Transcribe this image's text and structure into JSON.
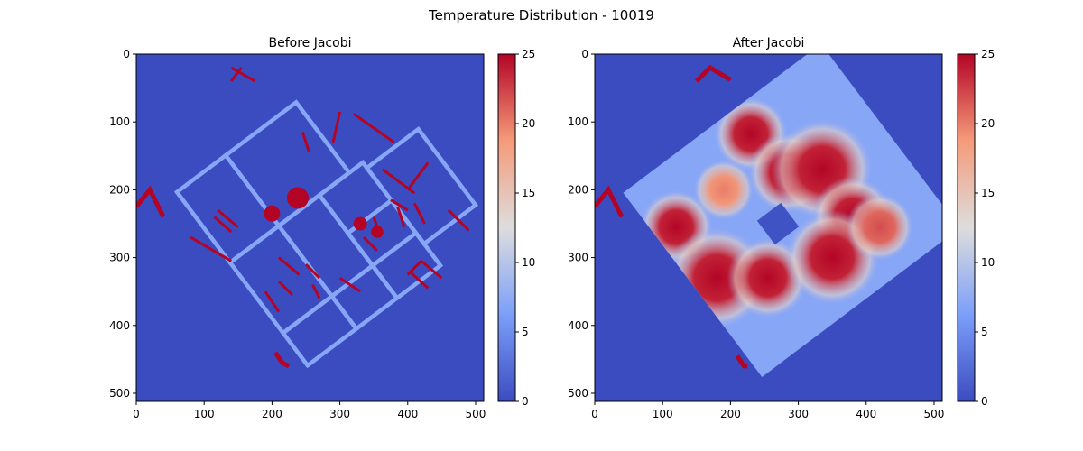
{
  "figure": {
    "title": "Temperature Distribution - 10019"
  },
  "chart_data": [
    {
      "type": "heatmap",
      "title": "Before Jacobi",
      "colormap": "coolwarm",
      "x_ticks": [
        0,
        100,
        200,
        300,
        400,
        500
      ],
      "y_ticks": [
        0,
        100,
        200,
        300,
        400,
        500
      ],
      "xlim": [
        0,
        512
      ],
      "ylim": [
        512,
        0
      ],
      "colorbar": {
        "ticks": [
          0,
          5,
          10,
          15,
          20,
          25
        ],
        "range": [
          0,
          25
        ]
      },
      "background_value": 0,
      "walls_value": 7,
      "heat_sources_value": 25,
      "rotation_deg": 37,
      "center": [
        256,
        256
      ],
      "outer_rooms": [
        {
          "x": [
            -125,
            -35
          ],
          "y": [
            -160,
            -30
          ]
        },
        {
          "x": [
            -35,
            95
          ],
          "y": [
            -160,
            -30
          ]
        },
        {
          "x": [
            -125,
            -35
          ],
          "y": [
            -30,
            100
          ]
        },
        {
          "x": [
            -35,
            40
          ],
          "y": [
            -30,
            100
          ]
        },
        {
          "x": [
            40,
            120
          ],
          "y": [
            -30,
            40
          ]
        },
        {
          "x": [
            40,
            120
          ],
          "y": [
            40,
            100
          ]
        },
        {
          "x": [
            -125,
            -35
          ],
          "y": [
            100,
            160
          ]
        },
        {
          "x": [
            -35,
            40
          ],
          "y": [
            100,
            160
          ]
        },
        {
          "x": [
            40,
            120
          ],
          "y": [
            100,
            160
          ]
        },
        {
          "x": [
            120,
            215
          ],
          "y": [
            -20,
            120
          ]
        }
      ],
      "hot_segments": [
        [
          [
            300,
            85
          ],
          [
            290,
            130
          ]
        ],
        [
          [
            245,
            115
          ],
          [
            255,
            145
          ]
        ],
        [
          [
            320,
            88
          ],
          [
            380,
            130
          ]
        ],
        [
          [
            363,
            170
          ],
          [
            410,
            205
          ]
        ],
        [
          [
            400,
            200
          ],
          [
            430,
            160
          ]
        ],
        [
          [
            375,
            215
          ],
          [
            400,
            230
          ]
        ],
        [
          [
            410,
            220
          ],
          [
            425,
            250
          ]
        ],
        [
          [
            420,
            305
          ],
          [
            400,
            325
          ]
        ],
        [
          [
            402,
            320
          ],
          [
            430,
            345
          ]
        ],
        [
          [
            420,
            305
          ],
          [
            450,
            330
          ]
        ],
        [
          [
            460,
            230
          ],
          [
            490,
            260
          ]
        ],
        [
          [
            120,
            230
          ],
          [
            150,
            255
          ]
        ],
        [
          [
            115,
            240
          ],
          [
            140,
            262
          ]
        ],
        [
          [
            80,
            270
          ],
          [
            140,
            305
          ]
        ],
        [
          [
            210,
            300
          ],
          [
            240,
            325
          ]
        ],
        [
          [
            190,
            350
          ],
          [
            210,
            380
          ]
        ],
        [
          [
            210,
            335
          ],
          [
            230,
            355
          ]
        ],
        [
          [
            250,
            310
          ],
          [
            270,
            330
          ]
        ],
        [
          [
            260,
            340
          ],
          [
            270,
            360
          ]
        ],
        [
          [
            300,
            330
          ],
          [
            330,
            350
          ]
        ],
        [
          [
            335,
            270
          ],
          [
            355,
            290
          ]
        ],
        [
          [
            350,
            240
          ],
          [
            360,
            270
          ]
        ],
        [
          [
            385,
            225
          ],
          [
            395,
            255
          ]
        ],
        [
          [
            140,
            20
          ],
          [
            175,
            40
          ]
        ],
        [
          [
            140,
            40
          ],
          [
            155,
            20
          ]
        ]
      ],
      "hot_blobs": [
        {
          "x": 238,
          "y": 212,
          "r": 16
        },
        {
          "x": 200,
          "y": 235,
          "r": 12
        },
        {
          "x": 330,
          "y": 250,
          "r": 10
        },
        {
          "x": 355,
          "y": 262,
          "r": 9
        }
      ],
      "side_marks": [
        {
          "points": [
            [
              0,
              225
            ],
            [
              20,
              200
            ],
            [
              40,
              240
            ]
          ]
        },
        {
          "points": [
            [
              205,
              440
            ],
            [
              215,
              455
            ],
            [
              225,
              460
            ]
          ]
        }
      ]
    },
    {
      "type": "heatmap",
      "title": "After Jacobi",
      "colormap": "coolwarm",
      "x_ticks": [
        0,
        100,
        200,
        300,
        400,
        500
      ],
      "y_ticks": [
        0,
        100,
        200,
        300,
        400,
        500
      ],
      "xlim": [
        0,
        512
      ],
      "ylim": [
        512,
        0
      ],
      "colorbar": {
        "ticks": [
          0,
          5,
          10,
          15,
          20,
          25
        ],
        "range": [
          0,
          25
        ]
      },
      "background_value": 0,
      "building_base_value": 7,
      "rotation_deg": 37,
      "center": [
        256,
        256
      ],
      "hot_spots": [
        {
          "x": 230,
          "y": 118,
          "r": 55,
          "v": 25
        },
        {
          "x": 285,
          "y": 175,
          "r": 60,
          "v": 25
        },
        {
          "x": 335,
          "y": 170,
          "r": 75,
          "v": 25
        },
        {
          "x": 380,
          "y": 240,
          "r": 60,
          "v": 25
        },
        {
          "x": 120,
          "y": 255,
          "r": 55,
          "v": 25
        },
        {
          "x": 180,
          "y": 330,
          "r": 75,
          "v": 25
        },
        {
          "x": 255,
          "y": 330,
          "r": 60,
          "v": 25
        },
        {
          "x": 350,
          "y": 300,
          "r": 70,
          "v": 25
        },
        {
          "x": 420,
          "y": 255,
          "r": 50,
          "v": 22
        },
        {
          "x": 190,
          "y": 200,
          "r": 45,
          "v": 20
        }
      ],
      "cold_spots": [
        {
          "x": 270,
          "y": 250,
          "r": 22
        }
      ],
      "side_marks": [
        {
          "points": [
            [
              0,
              225
            ],
            [
              20,
              200
            ],
            [
              40,
              240
            ]
          ]
        },
        {
          "points": [
            [
              210,
              445
            ],
            [
              220,
              460
            ],
            [
              225,
              460
            ]
          ]
        },
        {
          "points": [
            [
              150,
              40
            ],
            [
              170,
              20
            ],
            [
              200,
              38
            ]
          ]
        }
      ]
    }
  ]
}
